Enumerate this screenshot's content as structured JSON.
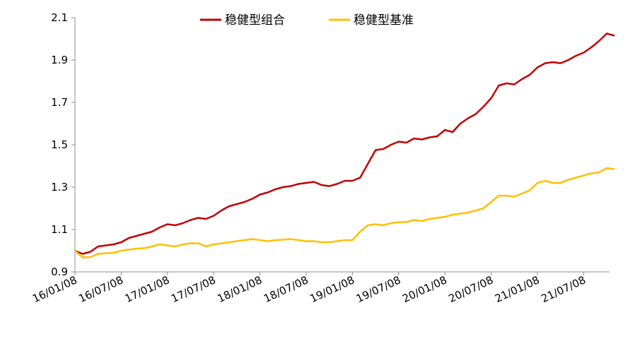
{
  "chart_data": {
    "type": "line",
    "x_ticks": [
      "16/01/08",
      "16/07/08",
      "17/01/08",
      "17/07/08",
      "18/01/08",
      "18/07/08",
      "19/01/08",
      "19/07/08",
      "20/01/08",
      "20/07/08",
      "21/01/08",
      "21/07/08"
    ],
    "ylim": [
      0.9,
      2.1
    ],
    "y_ticks": [
      "0.9",
      "1.1",
      "1.3",
      "1.5",
      "1.7",
      "1.9",
      "2.1"
    ],
    "legend_position": "top-center",
    "grid": false,
    "series": [
      {
        "name": "稳健型组合",
        "color": "#c00000",
        "x": [
          "16/01/08",
          "16/02/08",
          "16/03/08",
          "16/04/08",
          "16/05/08",
          "16/06/08",
          "16/07/08",
          "16/08/08",
          "16/09/08",
          "16/10/08",
          "16/11/08",
          "16/12/08",
          "17/01/08",
          "17/02/08",
          "17/03/08",
          "17/04/08",
          "17/05/08",
          "17/06/08",
          "17/07/08",
          "17/08/08",
          "17/09/08",
          "17/10/08",
          "17/11/08",
          "17/12/08",
          "18/01/08",
          "18/02/08",
          "18/03/08",
          "18/04/08",
          "18/05/08",
          "18/06/08",
          "18/07/08",
          "18/08/08",
          "18/09/08",
          "18/10/08",
          "18/11/08",
          "18/12/08",
          "19/01/08",
          "19/02/08",
          "19/03/08",
          "19/04/08",
          "19/05/08",
          "19/06/08",
          "19/07/08",
          "19/08/08",
          "19/09/08",
          "19/10/08",
          "19/11/08",
          "19/12/08",
          "20/01/08",
          "20/02/08",
          "20/03/08",
          "20/04/08",
          "20/05/08",
          "20/06/08",
          "20/07/08",
          "20/08/08",
          "20/09/08",
          "20/10/08",
          "20/11/08",
          "20/12/08",
          "21/01/08",
          "21/02/08",
          "21/03/08",
          "21/04/08",
          "21/05/08",
          "21/06/08",
          "21/07/08",
          "21/08/08",
          "21/09/08",
          "21/10/08",
          "21/11/08"
        ],
        "values": [
          1.0,
          0.985,
          0.995,
          1.02,
          1.025,
          1.03,
          1.04,
          1.06,
          1.07,
          1.08,
          1.09,
          1.11,
          1.125,
          1.12,
          1.13,
          1.145,
          1.155,
          1.15,
          1.165,
          1.19,
          1.21,
          1.22,
          1.23,
          1.245,
          1.265,
          1.275,
          1.29,
          1.3,
          1.305,
          1.315,
          1.32,
          1.325,
          1.31,
          1.305,
          1.315,
          1.33,
          1.33,
          1.345,
          1.41,
          1.475,
          1.48,
          1.5,
          1.515,
          1.51,
          1.53,
          1.525,
          1.535,
          1.54,
          1.57,
          1.56,
          1.6,
          1.625,
          1.645,
          1.68,
          1.72,
          1.78,
          1.79,
          1.785,
          1.81,
          1.83,
          1.865,
          1.885,
          1.89,
          1.885,
          1.9,
          1.92,
          1.935,
          1.96,
          1.99,
          2.025,
          2.015
        ]
      },
      {
        "name": "稳健型基准",
        "color": "#ffc000",
        "x": [
          "16/01/08",
          "16/02/08",
          "16/03/08",
          "16/04/08",
          "16/05/08",
          "16/06/08",
          "16/07/08",
          "16/08/08",
          "16/09/08",
          "16/10/08",
          "16/11/08",
          "16/12/08",
          "17/01/08",
          "17/02/08",
          "17/03/08",
          "17/04/08",
          "17/05/08",
          "17/06/08",
          "17/07/08",
          "17/08/08",
          "17/09/08",
          "17/10/08",
          "17/11/08",
          "17/12/08",
          "18/01/08",
          "18/02/08",
          "18/03/08",
          "18/04/08",
          "18/05/08",
          "18/06/08",
          "18/07/08",
          "18/08/08",
          "18/09/08",
          "18/10/08",
          "18/11/08",
          "18/12/08",
          "19/01/08",
          "19/02/08",
          "19/03/08",
          "19/04/08",
          "19/05/08",
          "19/06/08",
          "19/07/08",
          "19/08/08",
          "19/09/08",
          "19/10/08",
          "19/11/08",
          "19/12/08",
          "20/01/08",
          "20/02/08",
          "20/03/08",
          "20/04/08",
          "20/05/08",
          "20/06/08",
          "20/07/08",
          "20/08/08",
          "20/09/08",
          "20/10/08",
          "20/11/08",
          "20/12/08",
          "21/01/08",
          "21/02/08",
          "21/03/08",
          "21/04/08",
          "21/05/08",
          "21/06/08",
          "21/07/08",
          "21/08/08",
          "21/09/08",
          "21/10/08",
          "21/11/08"
        ],
        "values": [
          1.0,
          0.968,
          0.97,
          0.985,
          0.988,
          0.99,
          1.0,
          1.005,
          1.01,
          1.012,
          1.02,
          1.03,
          1.025,
          1.02,
          1.03,
          1.035,
          1.035,
          1.02,
          1.03,
          1.035,
          1.04,
          1.045,
          1.05,
          1.055,
          1.05,
          1.045,
          1.05,
          1.052,
          1.055,
          1.05,
          1.045,
          1.045,
          1.04,
          1.04,
          1.045,
          1.05,
          1.05,
          1.09,
          1.12,
          1.125,
          1.12,
          1.13,
          1.135,
          1.135,
          1.145,
          1.14,
          1.15,
          1.155,
          1.16,
          1.17,
          1.175,
          1.18,
          1.19,
          1.2,
          1.23,
          1.26,
          1.26,
          1.255,
          1.27,
          1.285,
          1.32,
          1.33,
          1.32,
          1.32,
          1.335,
          1.345,
          1.355,
          1.365,
          1.37,
          1.39,
          1.385
        ]
      }
    ]
  }
}
